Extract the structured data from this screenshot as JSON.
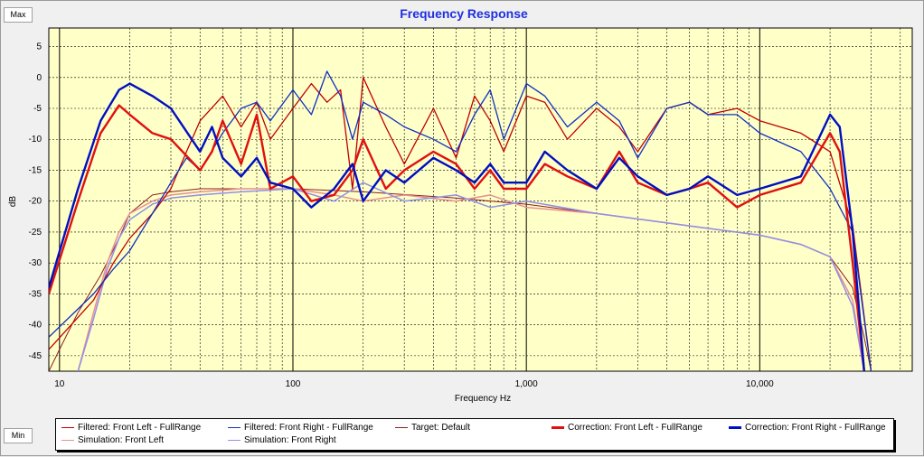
{
  "buttons": {
    "max": "Max",
    "min": "Min"
  },
  "chart_data": {
    "type": "line",
    "title": "Frequency Response",
    "xlabel": "Frequency Hz",
    "ylabel": "dB",
    "x_scale": "log",
    "xlim": [
      9,
      45000
    ],
    "ylim": [
      -47.5,
      8
    ],
    "x_ticks": [
      10,
      100,
      1000,
      10000
    ],
    "x_tick_labels": [
      "10",
      "100",
      "1,000",
      "10,000"
    ],
    "y_ticks": [
      5,
      0,
      -5,
      -10,
      -15,
      -20,
      -25,
      -30,
      -35,
      -40,
      -45
    ],
    "y_tick_labels": [
      "5",
      "0",
      "-5",
      "-10",
      "-15",
      "-20",
      "-25",
      "-30",
      "-35",
      "-40",
      "-45"
    ],
    "grid": true,
    "background": "#ffffc8",
    "series": [
      {
        "name": "Filtered: Front Left - FullRange",
        "color": "#c00000",
        "x": [
          9,
          14,
          17,
          20,
          25,
          30,
          35,
          40,
          50,
          60,
          70,
          80,
          100,
          120,
          140,
          160,
          180,
          200,
          250,
          300,
          400,
          500,
          600,
          700,
          800,
          1000,
          1200,
          1500,
          2000,
          2500,
          3000,
          4000,
          5000,
          6000,
          8000,
          10000,
          15000,
          20000,
          25000,
          30000
        ],
        "values": [
          -44,
          -36,
          -30,
          -26,
          -22,
          -18,
          -12,
          -7,
          -3,
          -8,
          -4,
          -10,
          -5,
          -1,
          -4,
          -2,
          -18,
          0,
          -8,
          -14,
          -5,
          -13,
          -3,
          -7,
          -12,
          -3,
          -4,
          -10,
          -5,
          -8,
          -12,
          -5,
          -4,
          -6,
          -5,
          -7,
          -9,
          -12,
          -24,
          -47.5
        ]
      },
      {
        "name": "Filtered: Front Right - FullRange",
        "color": "#1030c0",
        "x": [
          9,
          14,
          17,
          20,
          25,
          30,
          35,
          40,
          50,
          60,
          70,
          80,
          100,
          120,
          140,
          160,
          180,
          200,
          250,
          300,
          400,
          500,
          600,
          700,
          800,
          1000,
          1200,
          1500,
          2000,
          2500,
          3000,
          4000,
          5000,
          6000,
          8000,
          10000,
          15000,
          20000,
          25000,
          30000
        ],
        "values": [
          -42,
          -35,
          -31,
          -28,
          -22,
          -17,
          -13,
          -15,
          -9,
          -5,
          -4,
          -7,
          -2,
          -6,
          1,
          -3,
          -10,
          -4,
          -6,
          -8,
          -10,
          -12,
          -6,
          -2,
          -10,
          -1,
          -3,
          -8,
          -4,
          -7,
          -13,
          -5,
          -4,
          -6,
          -6,
          -9,
          -12,
          -18,
          -25,
          -47.5
        ]
      },
      {
        "name": "Target: Default",
        "color": "#8b2020",
        "x": [
          9,
          10,
          12,
          15,
          18,
          20,
          25,
          30,
          40,
          60,
          100,
          200,
          500,
          1000,
          2000,
          5000,
          10000,
          15000,
          20000,
          25000,
          28000,
          30000
        ],
        "values": [
          -47.5,
          -44,
          -38,
          -32,
          -26,
          -22,
          -19,
          -18.5,
          -18,
          -18,
          -18,
          -18.5,
          -19.5,
          -20.5,
          -22,
          -24,
          -25.5,
          -27,
          -29,
          -34,
          -42,
          -47.5
        ]
      },
      {
        "name": "Correction: Front Left - FullRange",
        "color": "#e01010",
        "x": [
          9,
          12,
          15,
          18,
          20,
          25,
          30,
          40,
          45,
          50,
          60,
          70,
          80,
          100,
          120,
          150,
          180,
          200,
          250,
          300,
          400,
          500,
          600,
          700,
          800,
          1000,
          1200,
          1500,
          2000,
          2500,
          3000,
          4000,
          5000,
          6000,
          8000,
          10000,
          15000,
          20000,
          22000,
          25000,
          28000
        ],
        "values": [
          -35,
          -20,
          -9,
          -4.5,
          -6,
          -9,
          -10,
          -15,
          -12,
          -7,
          -14,
          -6,
          -18,
          -16,
          -20,
          -19,
          -15,
          -10,
          -18,
          -15,
          -12,
          -14,
          -18,
          -15,
          -18,
          -18,
          -14,
          -16,
          -18,
          -12,
          -17,
          -19,
          -18,
          -17,
          -21,
          -19,
          -17,
          -9,
          -12,
          -30,
          -47.5
        ]
      },
      {
        "name": "Correction: Front Right - FullRange",
        "color": "#0010c0",
        "x": [
          9,
          12,
          15,
          18,
          20,
          25,
          30,
          40,
          45,
          50,
          60,
          70,
          80,
          100,
          120,
          150,
          180,
          200,
          250,
          300,
          400,
          500,
          600,
          700,
          800,
          1000,
          1200,
          1500,
          2000,
          2500,
          3000,
          4000,
          5000,
          6000,
          8000,
          10000,
          15000,
          20000,
          22000,
          25000,
          28000
        ],
        "values": [
          -34,
          -18,
          -7,
          -2,
          -1,
          -3,
          -5,
          -12,
          -8,
          -13,
          -16,
          -13,
          -17,
          -18,
          -21,
          -18,
          -14,
          -20,
          -15,
          -17,
          -13,
          -15,
          -17,
          -14,
          -17,
          -17,
          -12,
          -15,
          -18,
          -13,
          -16,
          -19,
          -18,
          -16,
          -19,
          -18,
          -16,
          -6,
          -8,
          -25,
          -47.5
        ]
      },
      {
        "name": "Simulation: Front Left",
        "color": "#e89090",
        "x": [
          12,
          14,
          16,
          18,
          20,
          25,
          30,
          40,
          60,
          100,
          150,
          200,
          300,
          500,
          700,
          1000,
          2000,
          5000,
          10000,
          15000,
          20000,
          25000,
          28000
        ],
        "values": [
          -47.5,
          -38,
          -30,
          -25,
          -22,
          -20,
          -19,
          -18.5,
          -18,
          -18,
          -19,
          -20,
          -19,
          -20,
          -19,
          -21,
          -22,
          -24,
          -25.5,
          -27,
          -29,
          -36,
          -47.5
        ]
      },
      {
        "name": "Simulation: Front Right",
        "color": "#9090e8",
        "x": [
          12,
          14,
          16,
          18,
          20,
          25,
          30,
          40,
          60,
          100,
          150,
          200,
          300,
          500,
          700,
          1000,
          2000,
          5000,
          10000,
          15000,
          20000,
          25000,
          28000
        ],
        "values": [
          -47.5,
          -39,
          -31,
          -26,
          -23,
          -20.5,
          -19.5,
          -19,
          -18.5,
          -18,
          -20,
          -17,
          -20,
          -19,
          -21,
          -20,
          -22,
          -24,
          -25.5,
          -27,
          -29,
          -37,
          -47.5
        ]
      }
    ]
  }
}
